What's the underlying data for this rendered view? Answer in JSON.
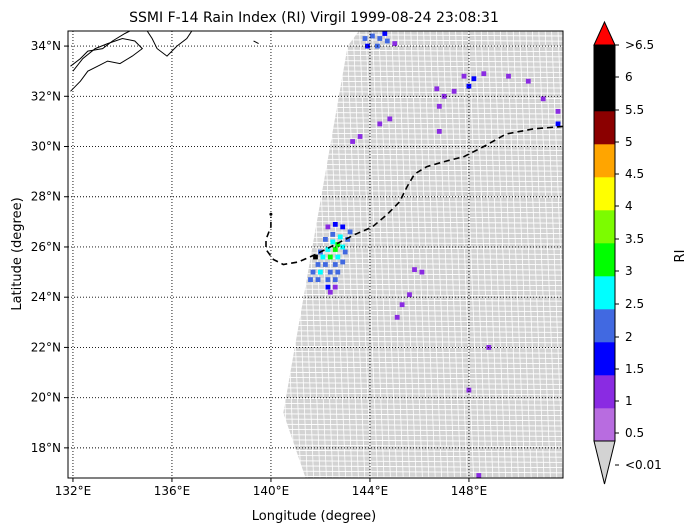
{
  "title": "SSMI F-14 Rain Index (RI) Virgil 1999-08-24 23:08:31",
  "map": {
    "xlabel": "Longitude (degree)",
    "ylabel": "Latitude (degree)",
    "lon_range": [
      131.8,
      151.8
    ],
    "lat_range": [
      16.8,
      34.6
    ],
    "lon_ticks": [
      {
        "value": 132,
        "label": "132°E"
      },
      {
        "value": 136,
        "label": "136°E"
      },
      {
        "value": 140,
        "label": "140°E"
      },
      {
        "value": 144,
        "label": "144°E"
      },
      {
        "value": 148,
        "label": "148°E"
      }
    ],
    "lat_ticks": [
      {
        "value": 18,
        "label": "18°N"
      },
      {
        "value": 20,
        "label": "20°N"
      },
      {
        "value": 22,
        "label": "22°N"
      },
      {
        "value": 24,
        "label": "24°N"
      },
      {
        "value": 26,
        "label": "26°N"
      },
      {
        "value": 28,
        "label": "28°N"
      },
      {
        "value": 30,
        "label": "30°N"
      },
      {
        "value": 32,
        "label": "32°N"
      },
      {
        "value": 34,
        "label": "34°N"
      }
    ],
    "grid": "dotted",
    "swath_outline_lonlat": [
      [
        144.0,
        35.2
      ],
      [
        151.8,
        35.2
      ],
      [
        151.8,
        16.8
      ],
      [
        141.4,
        16.8
      ],
      [
        140.5,
        19.4
      ],
      [
        143.1,
        34.0
      ]
    ],
    "swath_color": "#d3d3d3",
    "coastline_lonlat": [
      [
        [
          131.9,
          33.2
        ],
        [
          132.3,
          33.5
        ],
        [
          132.6,
          33.8
        ],
        [
          133.2,
          33.9
        ],
        [
          133.6,
          34.2
        ],
        [
          134.1,
          34.5
        ],
        [
          134.3,
          34.6
        ]
      ],
      [
        [
          131.9,
          32.2
        ],
        [
          132.3,
          32.6
        ],
        [
          132.6,
          33.0
        ],
        [
          133.0,
          33.2
        ],
        [
          133.4,
          33.4
        ],
        [
          133.9,
          33.3
        ],
        [
          134.4,
          33.6
        ],
        [
          134.8,
          33.9
        ],
        [
          134.5,
          34.2
        ],
        [
          134.0,
          34.3
        ],
        [
          133.4,
          34.1
        ],
        [
          132.9,
          33.9
        ],
        [
          132.4,
          33.5
        ],
        [
          132.0,
          33.0
        ]
      ],
      [
        [
          135.0,
          34.6
        ],
        [
          135.2,
          34.3
        ],
        [
          135.4,
          33.9
        ],
        [
          135.8,
          33.6
        ],
        [
          136.2,
          34.0
        ],
        [
          136.6,
          34.3
        ],
        [
          136.8,
          34.6
        ]
      ],
      [
        [
          137.9,
          34.6
        ],
        [
          138.3,
          34.6
        ],
        [
          138.8,
          34.7
        ]
      ],
      [
        [
          139.6,
          34.6
        ],
        [
          139.9,
          34.9
        ],
        [
          140.0,
          35.2
        ]
      ],
      [
        [
          139.3,
          34.2
        ],
        [
          139.5,
          34.1
        ]
      ]
    ],
    "track_lonlat": [
      [
        151.8,
        30.8
      ],
      [
        150.6,
        30.7
      ],
      [
        149.5,
        30.5
      ],
      [
        148.6,
        30.0
      ],
      [
        147.8,
        29.6
      ],
      [
        147.0,
        29.4
      ],
      [
        146.3,
        29.2
      ],
      [
        145.8,
        28.9
      ],
      [
        145.5,
        28.4
      ],
      [
        145.2,
        27.8
      ],
      [
        144.7,
        27.3
      ],
      [
        144.1,
        26.8
      ],
      [
        143.4,
        26.5
      ],
      [
        142.6,
        26.1
      ],
      [
        141.8,
        25.7
      ],
      [
        141.1,
        25.4
      ],
      [
        140.5,
        25.3
      ],
      [
        140.1,
        25.5
      ],
      [
        139.8,
        25.9
      ],
      [
        139.8,
        26.3
      ],
      [
        140.0,
        26.8
      ],
      [
        140.0,
        27.2
      ]
    ],
    "track_end_marker_lonlat": [
      140.0,
      27.3
    ]
  },
  "colorbar": {
    "label": "RI",
    "tick_labels": [
      "<0.01",
      "0.5",
      "1",
      "1.5",
      "2",
      "2.5",
      "3",
      "3.5",
      "4",
      "4.5",
      "5",
      "5.5",
      "6",
      ">6.5"
    ],
    "segment_colors": [
      "#b86ce0",
      "#8a2be2",
      "#0000ff",
      "#4169e1",
      "#00ffff",
      "#00ff00",
      "#7cfc00",
      "#ffff00",
      "#ffa500",
      "#8b0000",
      "#000000",
      "#000000"
    ],
    "over_color": "#ff0000",
    "under_color": "#d3d3d3"
  },
  "rain_pixels": [
    {
      "lon": 143.8,
      "lat": 34.3,
      "ri": 1.5
    },
    {
      "lon": 144.1,
      "lat": 34.4,
      "ri": 1.5
    },
    {
      "lon": 144.4,
      "lat": 34.3,
      "ri": 1.5
    },
    {
      "lon": 144.7,
      "lat": 34.2,
      "ri": 1.5
    },
    {
      "lon": 143.9,
      "lat": 34.0,
      "ri": 1.0
    },
    {
      "lon": 144.3,
      "lat": 34.0,
      "ri": 1.5
    },
    {
      "lon": 145.0,
      "lat": 34.1,
      "ri": 0.5
    },
    {
      "lon": 144.6,
      "lat": 34.5,
      "ri": 1.0
    },
    {
      "lon": 147.8,
      "lat": 32.8,
      "ri": 0.5
    },
    {
      "lon": 148.2,
      "lat": 32.7,
      "ri": 1.0
    },
    {
      "lon": 148.0,
      "lat": 32.4,
      "ri": 1.0
    },
    {
      "lon": 148.6,
      "lat": 32.9,
      "ri": 0.5
    },
    {
      "lon": 147.4,
      "lat": 32.2,
      "ri": 0.5
    },
    {
      "lon": 147.0,
      "lat": 32.0,
      "ri": 0.5
    },
    {
      "lon": 146.7,
      "lat": 32.3,
      "ri": 0.5
    },
    {
      "lon": 149.6,
      "lat": 32.8,
      "ri": 0.5
    },
    {
      "lon": 150.4,
      "lat": 32.6,
      "ri": 0.5
    },
    {
      "lon": 151.0,
      "lat": 31.9,
      "ri": 0.5
    },
    {
      "lon": 151.6,
      "lat": 31.4,
      "ri": 0.5
    },
    {
      "lon": 151.6,
      "lat": 30.9,
      "ri": 1.0
    },
    {
      "lon": 146.8,
      "lat": 31.6,
      "ri": 0.5
    },
    {
      "lon": 144.4,
      "lat": 30.9,
      "ri": 0.5
    },
    {
      "lon": 144.8,
      "lat": 31.1,
      "ri": 0.5
    },
    {
      "lon": 143.3,
      "lat": 30.2,
      "ri": 0.5
    },
    {
      "lon": 143.6,
      "lat": 30.4,
      "ri": 0.5
    },
    {
      "lon": 146.8,
      "lat": 30.6,
      "ri": 0.5
    },
    {
      "lon": 142.3,
      "lat": 26.8,
      "ri": 0.5
    },
    {
      "lon": 142.6,
      "lat": 26.9,
      "ri": 1.0
    },
    {
      "lon": 142.9,
      "lat": 26.8,
      "ri": 1.0
    },
    {
      "lon": 143.2,
      "lat": 26.6,
      "ri": 1.5
    },
    {
      "lon": 143.1,
      "lat": 26.3,
      "ri": 1.5
    },
    {
      "lon": 142.8,
      "lat": 26.4,
      "ri": 2.0
    },
    {
      "lon": 142.5,
      "lat": 26.5,
      "ri": 1.5
    },
    {
      "lon": 142.2,
      "lat": 26.3,
      "ri": 1.5
    },
    {
      "lon": 142.5,
      "lat": 26.2,
      "ri": 2.0
    },
    {
      "lon": 142.7,
      "lat": 26.1,
      "ri": 2.5
    },
    {
      "lon": 142.9,
      "lat": 26.0,
      "ri": 2.0
    },
    {
      "lon": 143.0,
      "lat": 25.8,
      "ri": 1.5
    },
    {
      "lon": 142.6,
      "lat": 25.9,
      "ri": 2.5
    },
    {
      "lon": 142.3,
      "lat": 25.9,
      "ri": 2.0
    },
    {
      "lon": 142.0,
      "lat": 25.8,
      "ri": 1.5
    },
    {
      "lon": 141.8,
      "lat": 25.6,
      "ri": 5.0
    },
    {
      "lon": 142.1,
      "lat": 25.6,
      "ri": 2.0
    },
    {
      "lon": 142.4,
      "lat": 25.6,
      "ri": 2.5
    },
    {
      "lon": 142.7,
      "lat": 25.6,
      "ri": 2.0
    },
    {
      "lon": 142.9,
      "lat": 25.4,
      "ri": 1.5
    },
    {
      "lon": 142.6,
      "lat": 25.3,
      "ri": 1.5
    },
    {
      "lon": 142.2,
      "lat": 25.3,
      "ri": 1.5
    },
    {
      "lon": 141.9,
      "lat": 25.3,
      "ri": 1.5
    },
    {
      "lon": 141.7,
      "lat": 25.0,
      "ri": 1.5
    },
    {
      "lon": 142.0,
      "lat": 25.0,
      "ri": 2.0
    },
    {
      "lon": 142.4,
      "lat": 25.0,
      "ri": 1.5
    },
    {
      "lon": 142.7,
      "lat": 25.0,
      "ri": 1.5
    },
    {
      "lon": 141.6,
      "lat": 24.7,
      "ri": 1.5
    },
    {
      "lon": 141.9,
      "lat": 24.7,
      "ri": 1.5
    },
    {
      "lon": 142.3,
      "lat": 24.7,
      "ri": 1.5
    },
    {
      "lon": 142.6,
      "lat": 24.7,
      "ri": 1.5
    },
    {
      "lon": 142.3,
      "lat": 24.4,
      "ri": 1.0
    },
    {
      "lon": 142.6,
      "lat": 24.4,
      "ri": 0.5
    },
    {
      "lon": 142.4,
      "lat": 24.2,
      "ri": 0.5
    },
    {
      "lon": 145.8,
      "lat": 25.1,
      "ri": 0.5
    },
    {
      "lon": 146.1,
      "lat": 25.0,
      "ri": 0.5
    },
    {
      "lon": 145.6,
      "lat": 24.1,
      "ri": 0.5
    },
    {
      "lon": 145.3,
      "lat": 23.7,
      "ri": 0.5
    },
    {
      "lon": 145.1,
      "lat": 23.2,
      "ri": 0.5
    },
    {
      "lon": 148.8,
      "lat": 22.0,
      "ri": 0.5
    },
    {
      "lon": 148.0,
      "lat": 20.3,
      "ri": 0.5
    },
    {
      "lon": 148.4,
      "lat": 16.9,
      "ri": 0.5
    }
  ]
}
